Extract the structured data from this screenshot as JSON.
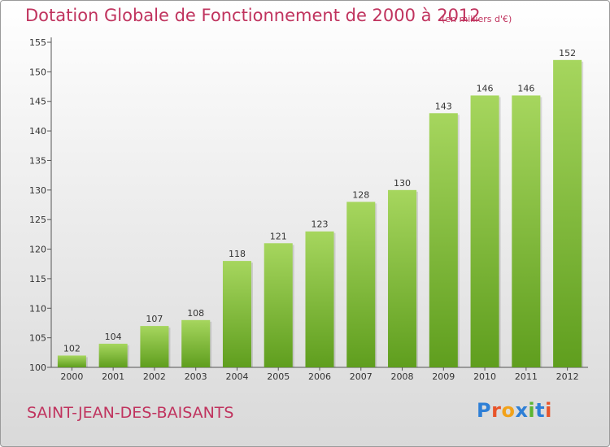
{
  "chart_data": {
    "type": "bar",
    "title": "Dotation Globale de Fonctionnement de 2000 à 2012",
    "subtitle": "(en milliers d'€)",
    "xlabel": "",
    "ylabel": "",
    "categories": [
      "2000",
      "2001",
      "2002",
      "2003",
      "2004",
      "2005",
      "2006",
      "2007",
      "2008",
      "2009",
      "2010",
      "2011",
      "2012"
    ],
    "values": [
      102,
      104,
      107,
      108,
      118,
      121,
      123,
      128,
      130,
      143,
      146,
      146,
      152
    ],
    "ylim": [
      100,
      155
    ],
    "yticks": [
      100,
      105,
      110,
      115,
      120,
      125,
      130,
      135,
      140,
      145,
      150,
      155
    ],
    "grid": false,
    "bar_color": "#7dbb3a",
    "data_labels": true
  },
  "footer": {
    "commune": "SAINT-JEAN-DES-BAISANTS"
  },
  "logo": {
    "letters": [
      "P",
      "r",
      "o",
      "x",
      "i",
      "t",
      "i"
    ],
    "colors": [
      "#2e7fd6",
      "#e8542a",
      "#f2a21a",
      "#2e7fd6",
      "#5bb531",
      "#2e7fd6",
      "#e8542a"
    ]
  },
  "colors": {
    "title": "#c0335e",
    "bar_top": "#a6d65e",
    "bar_bottom": "#5f9e1e"
  }
}
